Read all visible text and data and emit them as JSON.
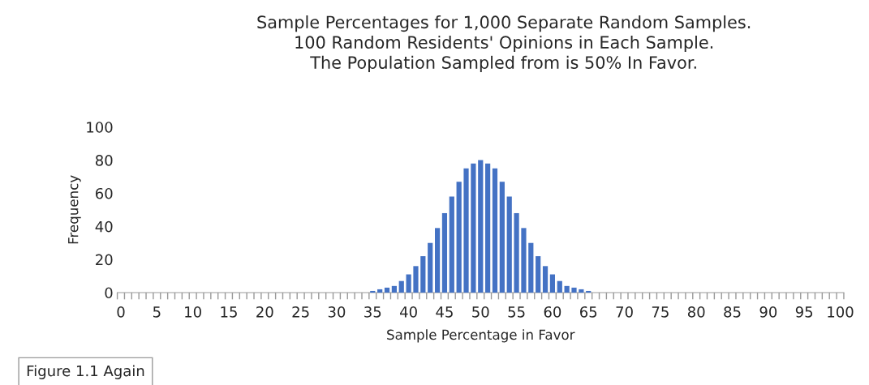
{
  "chart_data": {
    "type": "bar",
    "title": "Sample Percentages for 1,000 Separate Random Samples.\n100 Random Residents' Opinions in Each Sample.\nThe Population Sampled from is 50% In Favor.",
    "xlabel": "Sample Percentage in Favor",
    "ylabel": "Frequency",
    "categories": [
      "0",
      null,
      null,
      null,
      null,
      "5",
      null,
      null,
      null,
      null,
      "10",
      null,
      null,
      null,
      null,
      "15",
      null,
      null,
      null,
      null,
      "20",
      null,
      null,
      null,
      null,
      "25",
      null,
      null,
      null,
      null,
      "30",
      null,
      null,
      null,
      null,
      "35",
      null,
      null,
      null,
      null,
      "40",
      null,
      null,
      null,
      null,
      "45",
      null,
      null,
      null,
      null,
      "50",
      null,
      null,
      null,
      null,
      "55",
      null,
      null,
      null,
      null,
      "60",
      null,
      null,
      null,
      null,
      "65",
      null,
      null,
      null,
      null,
      "70",
      null,
      null,
      null,
      null,
      "75",
      null,
      null,
      null,
      null,
      "80",
      null,
      null,
      null,
      null,
      "85",
      null,
      null,
      null,
      null,
      "90",
      null,
      null,
      null,
      null,
      "95",
      null,
      null,
      null,
      null,
      "100"
    ],
    "values": [
      0,
      0,
      0,
      0,
      0,
      0,
      0,
      0,
      0,
      0,
      0,
      0,
      0,
      0,
      0,
      0,
      0,
      0,
      0,
      0,
      0,
      0,
      0,
      0,
      0,
      0,
      0,
      0,
      0,
      0,
      0,
      0,
      0,
      0,
      0,
      1,
      2,
      3,
      4,
      7,
      11,
      16,
      22,
      30,
      39,
      48,
      58,
      67,
      75,
      78,
      80,
      78,
      75,
      67,
      58,
      48,
      39,
      30,
      22,
      16,
      11,
      7,
      4,
      3,
      2,
      1,
      0,
      0,
      0,
      0,
      0,
      0,
      0,
      0,
      0,
      0,
      0,
      0,
      0,
      0,
      0,
      0,
      0,
      0,
      0,
      0,
      0,
      0,
      0,
      0,
      0,
      0,
      0,
      0,
      0,
      0,
      0,
      0,
      0,
      0,
      0
    ],
    "color": "#4472c4",
    "ylim": [
      0,
      100
    ],
    "yticks": [
      0,
      20,
      40,
      60,
      80,
      100
    ],
    "grid": false,
    "legend": false,
    "annotations": [
      "Figure 1.1 Again"
    ]
  }
}
